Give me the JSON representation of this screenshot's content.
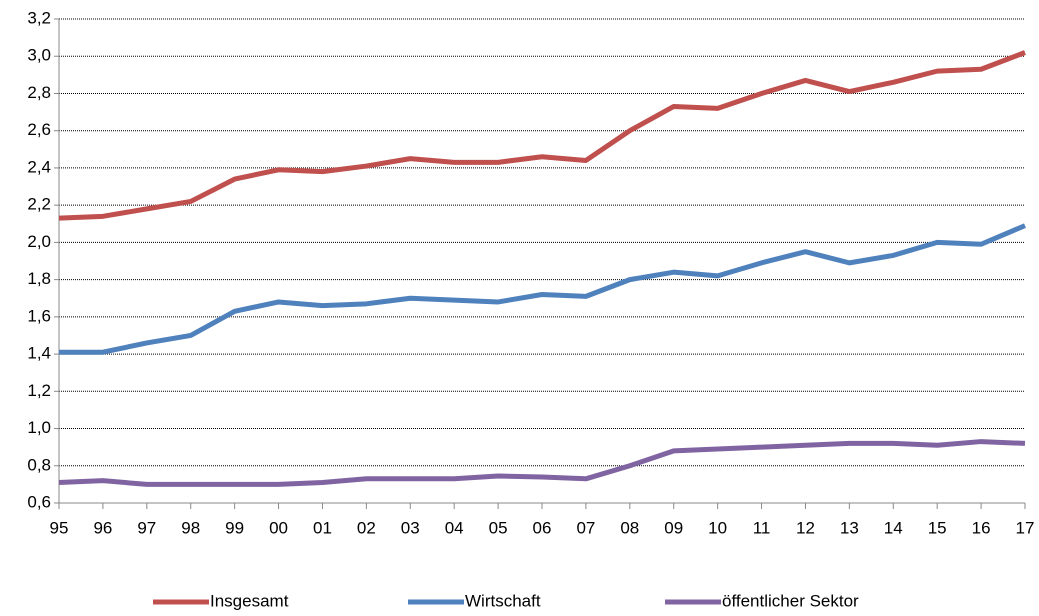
{
  "chart_data": {
    "type": "line",
    "categories": [
      "95",
      "96",
      "97",
      "98",
      "99",
      "00",
      "01",
      "02",
      "03",
      "04",
      "05",
      "06",
      "07",
      "08",
      "09",
      "10",
      "11",
      "12",
      "13",
      "14",
      "15",
      "16",
      "17"
    ],
    "series": [
      {
        "name": "Insgesamt",
        "color": "#c0504d",
        "values": [
          2.13,
          2.14,
          2.18,
          2.22,
          2.34,
          2.39,
          2.38,
          2.41,
          2.45,
          2.43,
          2.43,
          2.46,
          2.44,
          2.6,
          2.73,
          2.72,
          2.8,
          2.87,
          2.81,
          2.86,
          2.92,
          2.93,
          3.02
        ]
      },
      {
        "name": "Wirtschaft",
        "color": "#4f81bd",
        "values": [
          1.41,
          1.41,
          1.46,
          1.5,
          1.63,
          1.68,
          1.66,
          1.67,
          1.7,
          1.69,
          1.68,
          1.72,
          1.71,
          1.8,
          1.84,
          1.82,
          1.89,
          1.95,
          1.89,
          1.93,
          2.0,
          1.99,
          2.09
        ]
      },
      {
        "name": "öffentlicher Sektor",
        "color": "#8064a2",
        "values": [
          0.71,
          0.72,
          0.7,
          0.7,
          0.7,
          0.7,
          0.71,
          0.73,
          0.73,
          0.73,
          0.745,
          0.74,
          0.73,
          0.8,
          0.88,
          0.89,
          0.9,
          0.91,
          0.92,
          0.92,
          0.91,
          0.93,
          0.92
        ]
      }
    ],
    "ylim": [
      0.6,
      3.2
    ],
    "yticks": [
      {
        "value": 0.6,
        "label": "0,6"
      },
      {
        "value": 0.8,
        "label": "0,8"
      },
      {
        "value": 1.0,
        "label": "1,0"
      },
      {
        "value": 1.2,
        "label": "1,2"
      },
      {
        "value": 1.4,
        "label": "1,4"
      },
      {
        "value": 1.6,
        "label": "1,6"
      },
      {
        "value": 1.8,
        "label": "1,8"
      },
      {
        "value": 2.0,
        "label": "2,0"
      },
      {
        "value": 2.2,
        "label": "2,2"
      },
      {
        "value": 2.4,
        "label": "2,4"
      },
      {
        "value": 2.6,
        "label": "2,6"
      },
      {
        "value": 2.8,
        "label": "2,8"
      },
      {
        "value": 3.0,
        "label": "3,0"
      },
      {
        "value": 3.2,
        "label": "3,2"
      }
    ],
    "grid": true,
    "legend": "bottom"
  }
}
